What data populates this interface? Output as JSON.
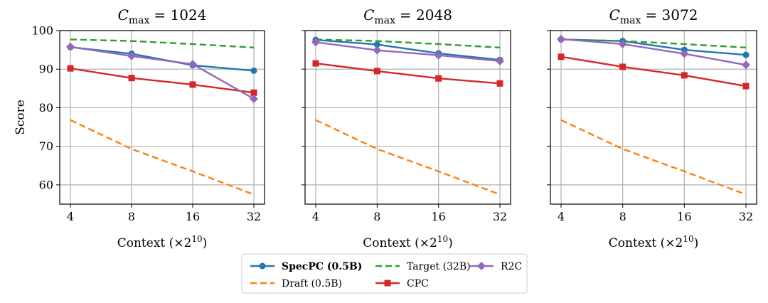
{
  "figure": {
    "ylabel": "Score",
    "xlabel_main": "Context",
    "xlabel_unit": "(×2",
    "xlabel_exp": "10",
    "xlabel_close": ")"
  },
  "colors": {
    "specpc": "#1f77b4",
    "draft": "#ff7f0e",
    "target": "#2ca02c",
    "cpc": "#d62728",
    "r2c": "#9467bd"
  },
  "chart_data": [
    {
      "type": "line",
      "title_prefix": "C",
      "title_sub": "max",
      "title_value": "= 1024",
      "categories": [
        "4",
        "8",
        "16",
        "32"
      ],
      "ylim": [
        55,
        100
      ],
      "yticks": [
        60,
        70,
        80,
        90,
        100
      ],
      "grid": true,
      "series": [
        {
          "key": "specpc",
          "name": "SpecPC (0.5B)",
          "values": [
            95.7,
            94.0,
            91.0,
            89.6
          ]
        },
        {
          "key": "draft",
          "name": "Draft (0.5B)",
          "values": [
            76.8,
            69.3,
            63.5,
            57.5
          ]
        },
        {
          "key": "target",
          "name": "Target (32B)",
          "values": [
            97.7,
            97.3,
            96.5,
            95.6
          ]
        },
        {
          "key": "cpc",
          "name": "CPC",
          "values": [
            90.2,
            87.7,
            86.0,
            83.9
          ]
        },
        {
          "key": "r2c",
          "name": "R2C",
          "values": [
            95.8,
            93.4,
            91.3,
            82.3
          ]
        }
      ]
    },
    {
      "type": "line",
      "title_prefix": "C",
      "title_sub": "max",
      "title_value": "= 2048",
      "categories": [
        "4",
        "8",
        "16",
        "32"
      ],
      "ylim": [
        55,
        100
      ],
      "yticks": [
        60,
        70,
        80,
        90,
        100
      ],
      "grid": true,
      "series": [
        {
          "key": "specpc",
          "name": "SpecPC (0.5B)",
          "values": [
            97.6,
            96.4,
            94.1,
            92.4
          ]
        },
        {
          "key": "draft",
          "name": "Draft (0.5B)",
          "values": [
            76.8,
            69.3,
            63.5,
            57.5
          ]
        },
        {
          "key": "target",
          "name": "Target (32B)",
          "values": [
            97.7,
            97.3,
            96.5,
            95.6
          ]
        },
        {
          "key": "cpc",
          "name": "CPC",
          "values": [
            91.5,
            89.5,
            87.6,
            86.3
          ]
        },
        {
          "key": "r2c",
          "name": "R2C",
          "values": [
            97.0,
            94.9,
            93.6,
            92.1
          ]
        }
      ]
    },
    {
      "type": "line",
      "title_prefix": "C",
      "title_sub": "max",
      "title_value": "= 3072",
      "categories": [
        "4",
        "8",
        "16",
        "32"
      ],
      "ylim": [
        55,
        100
      ],
      "yticks": [
        60,
        70,
        80,
        90,
        100
      ],
      "grid": true,
      "series": [
        {
          "key": "specpc",
          "name": "SpecPC (0.5B)",
          "values": [
            97.7,
            97.3,
            95.0,
            93.7
          ]
        },
        {
          "key": "draft",
          "name": "Draft (0.5B)",
          "values": [
            76.8,
            69.3,
            63.5,
            57.5
          ]
        },
        {
          "key": "target",
          "name": "Target (32B)",
          "values": [
            97.7,
            97.3,
            96.5,
            95.6
          ]
        },
        {
          "key": "cpc",
          "name": "CPC",
          "values": [
            93.2,
            90.6,
            88.4,
            85.6
          ]
        },
        {
          "key": "r2c",
          "name": "R2C",
          "values": [
            97.8,
            96.5,
            94.0,
            91.1
          ]
        }
      ]
    }
  ],
  "legend": {
    "placement": "bottom-center",
    "items": [
      {
        "key": "specpc",
        "label": "SpecPC (0.5B)",
        "bold": true,
        "style": "solid",
        "marker": "circle"
      },
      {
        "key": "draft",
        "label": "Draft (0.5B)",
        "bold": false,
        "style": "dashed",
        "marker": "none"
      },
      {
        "key": "target",
        "label": "Target (32B)",
        "bold": false,
        "style": "dashed",
        "marker": "none"
      },
      {
        "key": "cpc",
        "label": "CPC",
        "bold": false,
        "style": "solid",
        "marker": "square"
      },
      {
        "key": "r2c",
        "label": "R2C",
        "bold": false,
        "style": "solid",
        "marker": "diamond"
      }
    ]
  }
}
